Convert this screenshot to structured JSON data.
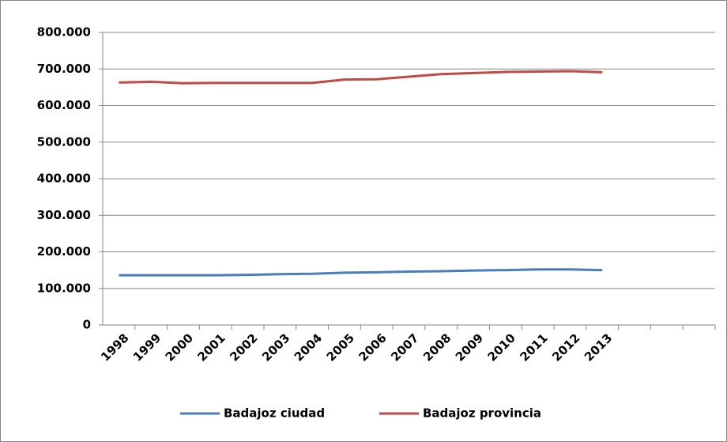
{
  "chart_data": {
    "type": "line",
    "categories": [
      "1998",
      "1999",
      "2000",
      "2001",
      "2002",
      "2003",
      "2004",
      "2005",
      "2006",
      "2007",
      "2008",
      "2009",
      "2010",
      "2011",
      "2012",
      "2013",
      null,
      null,
      null
    ],
    "series": [
      {
        "name": "Badajoz ciudad",
        "color": "#4a7ebb",
        "values": [
          136000,
          136000,
          136000,
          136000,
          137000,
          139000,
          140000,
          143000,
          144000,
          146000,
          147000,
          149000,
          150000,
          152000,
          152000,
          150000,
          null,
          null,
          null
        ]
      },
      {
        "name": "Badajoz provincia",
        "color": "#be4b48",
        "values": [
          663000,
          665000,
          661000,
          662000,
          662000,
          662000,
          662000,
          671000,
          672000,
          679000,
          686000,
          689000,
          692000,
          693000,
          694000,
          691000,
          null,
          null,
          null
        ]
      }
    ],
    "ylim": [
      0,
      800000
    ],
    "yticks": [
      0,
      {
        "value": 100000,
        "label": "100.000"
      },
      {
        "value": 200000,
        "label": "200.000"
      },
      {
        "value": 300000,
        "label": "300.000"
      },
      {
        "value": 400000,
        "label": "400.000"
      },
      {
        "value": 500000,
        "label": "500.000"
      },
      {
        "value": 600000,
        "label": "600.000"
      },
      {
        "value": 700000,
        "label": "700.000"
      },
      {
        "value": 800000,
        "label": "800.000"
      }
    ],
    "grid": true,
    "legend": "bottom"
  }
}
